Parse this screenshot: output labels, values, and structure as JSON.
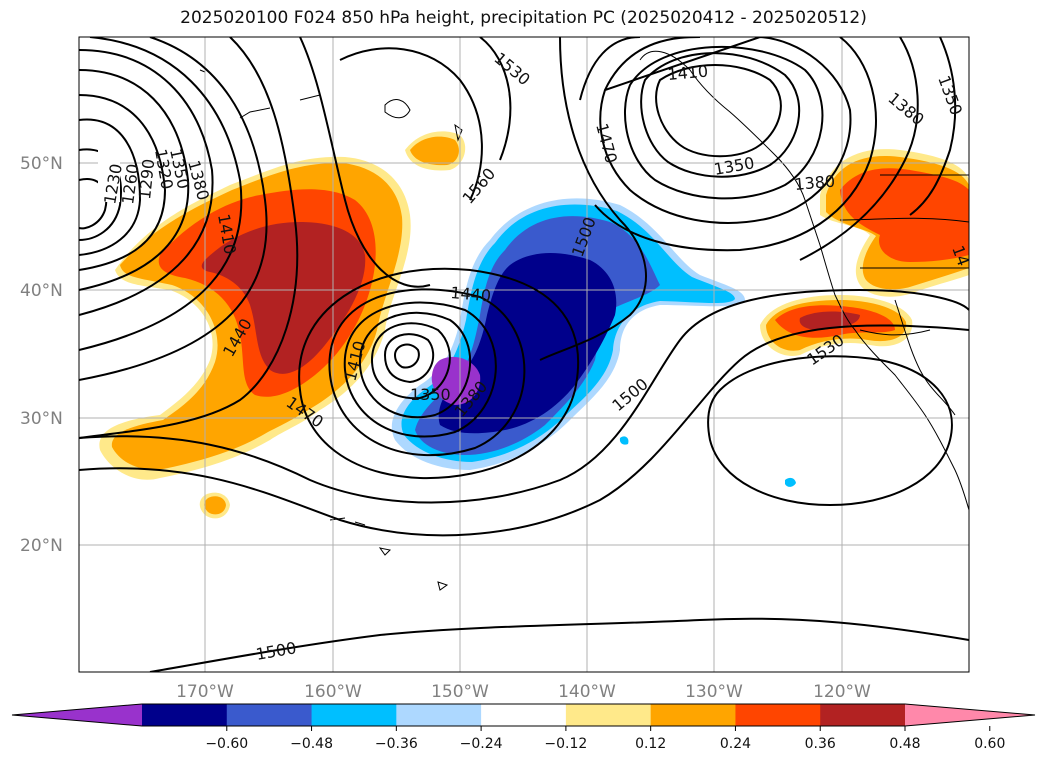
{
  "title": "2025020100 F024 850 hPa height, precipitation PC (2025020412 - 2025020512)",
  "map": {
    "grid": true,
    "lon_ticks": [
      "170°W",
      "160°W",
      "150°W",
      "140°W",
      "130°W",
      "120°W"
    ],
    "lat_ticks": [
      "50°N",
      "40°N",
      "30°N",
      "20°N"
    ],
    "contour_labels": [
      {
        "text": "1230"
      },
      {
        "text": "1260"
      },
      {
        "text": "1290"
      },
      {
        "text": "1320"
      },
      {
        "text": "1350"
      },
      {
        "text": "1380"
      },
      {
        "text": "1410"
      },
      {
        "text": "1440"
      },
      {
        "text": "1470"
      },
      {
        "text": "1410"
      },
      {
        "text": "1560"
      },
      {
        "text": "1530"
      },
      {
        "text": "1440"
      },
      {
        "text": "1500"
      },
      {
        "text": "1470"
      },
      {
        "text": "1410"
      },
      {
        "text": "1350"
      },
      {
        "text": "1380"
      },
      {
        "text": "1350"
      },
      {
        "text": "1380"
      },
      {
        "text": "1350"
      },
      {
        "text": "1380"
      },
      {
        "text": "14"
      },
      {
        "text": "1530"
      },
      {
        "text": "1500"
      },
      {
        "text": "1500"
      }
    ]
  },
  "colorbar": {
    "extend": "both",
    "colors": [
      "#9932cc",
      "#00008b",
      "#3a5acd",
      "#00bfff",
      "#add8ff",
      "#ffffff",
      "#ffe98a",
      "#ffa500",
      "#ff4500",
      "#b22222",
      "#ff88aa"
    ],
    "ticks": [
      "−0.60",
      "−0.48",
      "−0.36",
      "−0.24",
      "−0.12",
      "0.12",
      "0.24",
      "0.36",
      "0.48",
      "0.60"
    ]
  },
  "colors": {
    "contour": "#000000",
    "grid": "#b0b0b0",
    "coast": "#000000"
  }
}
